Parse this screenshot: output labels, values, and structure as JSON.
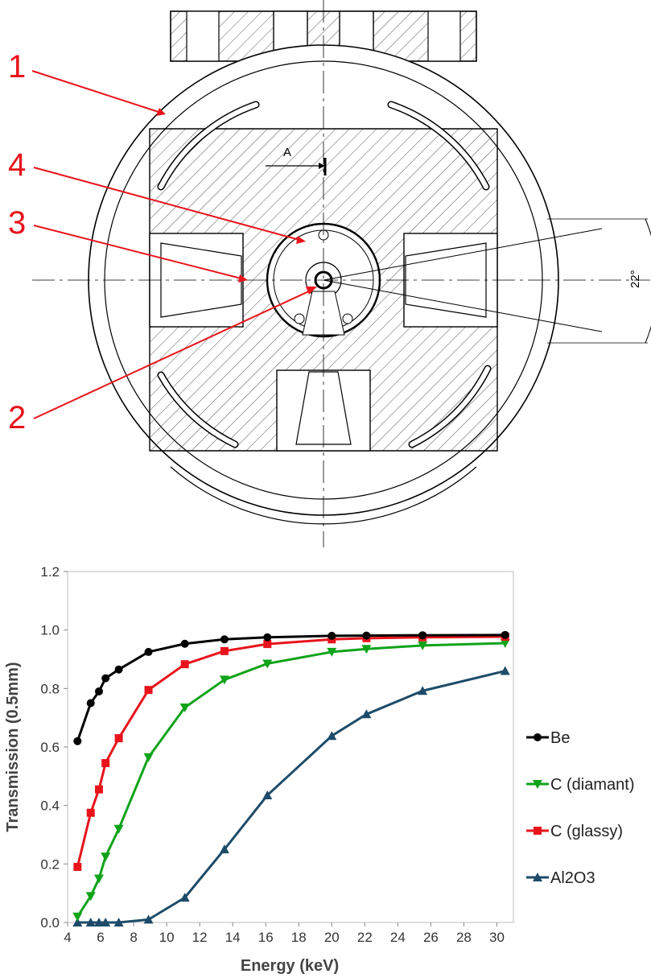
{
  "drawing": {
    "callouts": [
      "1",
      "2",
      "3",
      "4"
    ],
    "section_label": "A",
    "angle_label": "22°"
  },
  "chart_data": {
    "type": "line",
    "xlabel": "Energy (keV)",
    "ylabel": "Transmission (0.5mm)",
    "xlim": [
      4,
      31
    ],
    "ylim": [
      0,
      1.2
    ],
    "xticks": [
      4,
      6,
      8,
      10,
      12,
      14,
      16,
      18,
      20,
      22,
      24,
      26,
      28,
      30
    ],
    "yticks": [
      "0.0",
      "0.2",
      "0.4",
      "0.6",
      "0.8",
      "1.0",
      "1.2"
    ],
    "grid": false,
    "legend_position": "right",
    "series": [
      {
        "name": "Be",
        "color": "#000000",
        "marker": "circle",
        "x": [
          4.6,
          5.4,
          5.9,
          6.3,
          7.1,
          8.9,
          11.1,
          13.5,
          16.1,
          20.0,
          22.1,
          25.5,
          30.5
        ],
        "y": [
          0.62,
          0.75,
          0.79,
          0.835,
          0.865,
          0.925,
          0.953,
          0.968,
          0.975,
          0.98,
          0.981,
          0.982,
          0.983
        ]
      },
      {
        "name": "C (diamant)",
        "color": "#10a31a",
        "marker": "triangle-down",
        "x": [
          4.6,
          5.4,
          5.9,
          6.3,
          7.1,
          8.9,
          11.1,
          13.5,
          16.1,
          20.0,
          22.1,
          25.5,
          30.5
        ],
        "y": [
          0.02,
          0.09,
          0.15,
          0.225,
          0.32,
          0.565,
          0.735,
          0.83,
          0.885,
          0.925,
          0.935,
          0.947,
          0.955
        ]
      },
      {
        "name": "C (glassy)",
        "color": "#e8141c",
        "marker": "square",
        "x": [
          4.6,
          5.4,
          5.9,
          6.3,
          7.1,
          8.9,
          11.1,
          13.5,
          16.1,
          20.0,
          22.1,
          25.5,
          30.5
        ],
        "y": [
          0.19,
          0.375,
          0.455,
          0.545,
          0.63,
          0.795,
          0.883,
          0.928,
          0.952,
          0.968,
          0.972,
          0.975,
          0.977
        ]
      },
      {
        "name": "Al2O3",
        "color": "#1d4b69",
        "marker": "triangle-up",
        "x": [
          4.6,
          5.4,
          5.9,
          6.3,
          7.1,
          8.9,
          11.1,
          13.5,
          16.1,
          20.0,
          22.1,
          25.5,
          30.5
        ],
        "y": [
          0.0,
          0.0,
          0.0,
          0.0,
          0.0,
          0.01,
          0.085,
          0.25,
          0.435,
          0.638,
          0.712,
          0.792,
          0.86
        ]
      }
    ]
  }
}
